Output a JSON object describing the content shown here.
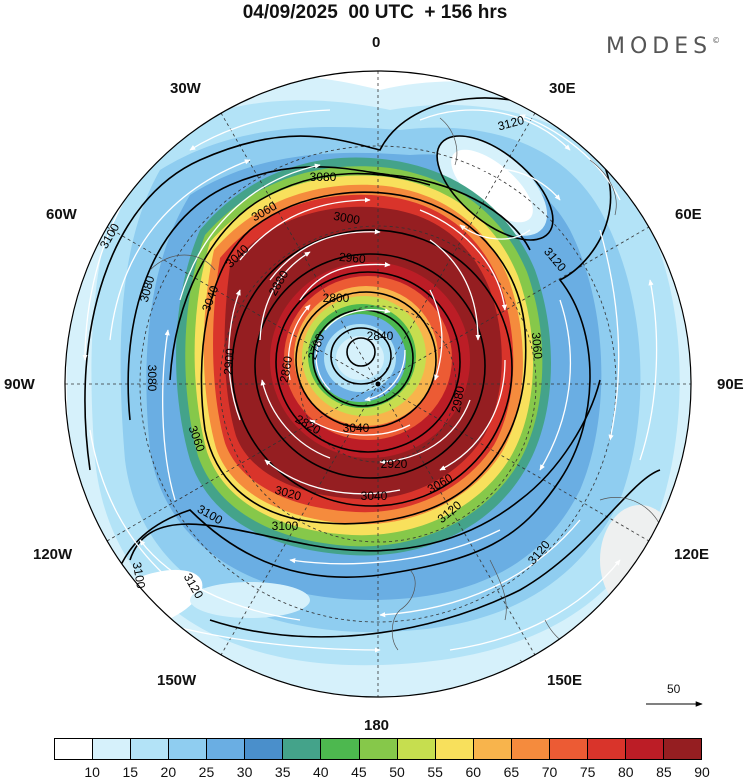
{
  "title": "04/09/2025  00 UTC  + 156 hrs",
  "brand": "MODES",
  "brand_mark": "©",
  "longitude_labels": {
    "lon_0": "0",
    "lon_30E": "30E",
    "lon_60E": "60E",
    "lon_90E": "90E",
    "lon_120E": "120E",
    "lon_150E": "150E",
    "lon_180": "180",
    "lon_150W": "150W",
    "lon_120W": "120W",
    "lon_90W": "90W",
    "lon_60W": "60W",
    "lon_30W": "30W"
  },
  "reference_vector": "50",
  "contour_labels": [
    "3120",
    "3120",
    "3120",
    "3120",
    "3120",
    "3080",
    "3080",
    "3080",
    "3060",
    "3060",
    "3040",
    "3100",
    "3100",
    "3100",
    "3100",
    "3000",
    "2960",
    "2800",
    "2780",
    "2820",
    "2860",
    "2920",
    "3020",
    "3040",
    "3060",
    "3060",
    "2880",
    "3040",
    "3040",
    "2980",
    "2900",
    "2840"
  ],
  "colorbar": {
    "ticks": [
      "10",
      "15",
      "20",
      "25",
      "30",
      "35",
      "40",
      "45",
      "50",
      "55",
      "60",
      "65",
      "70",
      "75",
      "80",
      "85",
      "90"
    ],
    "colors": [
      "#ffffff",
      "#d6f1fb",
      "#b3e3f7",
      "#8fcdf0",
      "#6aaee3",
      "#4a8fcb",
      "#44a38a",
      "#4db84f",
      "#86c84a",
      "#c6de4f",
      "#f8e05c",
      "#f8b44c",
      "#f58b3d",
      "#ec5b34",
      "#d9342b",
      "#bc1d26",
      "#951e21"
    ]
  }
}
